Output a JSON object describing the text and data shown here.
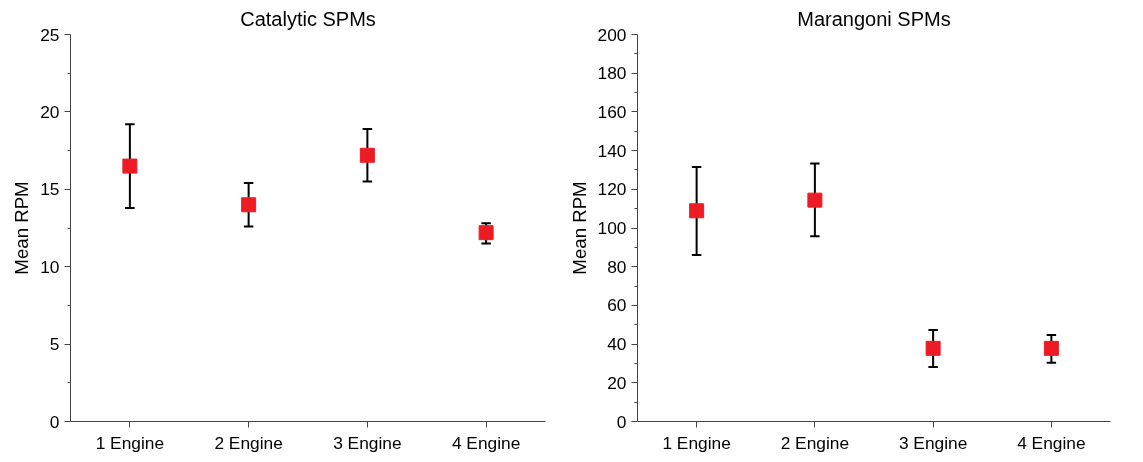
{
  "chart_data": [
    {
      "type": "scatter",
      "title": "Catalytic SPMs",
      "ylabel": "Mean RPM",
      "categories": [
        "1 Engine",
        "2 Engine",
        "3 Engine",
        "4 Engine"
      ],
      "series": [
        {
          "color": "#ed1c24",
          "values": [
            16.5,
            14.0,
            17.2,
            12.2
          ],
          "errors": [
            [
              13.8,
              19.2
            ],
            [
              12.6,
              15.4
            ],
            [
              15.5,
              18.9
            ],
            [
              11.5,
              12.8
            ]
          ]
        }
      ],
      "ylim": [
        0,
        25
      ],
      "yticks": [
        0,
        {
          "value": 2.5,
          "label": null
        },
        5,
        {
          "value": 7.5,
          "label": null
        },
        10,
        {
          "value": 12.5,
          "label": null
        },
        15,
        {
          "value": 17.5,
          "label": null
        },
        20,
        {
          "value": 22.5,
          "label": null
        },
        25
      ],
      "marker": "square",
      "grid": false
    },
    {
      "type": "scatter",
      "title": "Marangoni SPMs",
      "ylabel": "Mean RPM",
      "categories": [
        "1 Engine",
        "2 Engine",
        "3 Engine",
        "4 Engine"
      ],
      "series": [
        {
          "color": "#ed1c24",
          "values": [
            108.9,
            114.4,
            37.8,
            37.8
          ],
          "errors": [
            [
              86.1,
              131.5
            ],
            [
              95.7,
              133.3
            ],
            [
              28.2,
              47.3
            ],
            [
              30.4,
              44.7
            ]
          ]
        }
      ],
      "ylim": [
        0,
        200
      ],
      "yticks": [
        0,
        {
          "value": 10,
          "label": null
        },
        20,
        {
          "value": 30,
          "label": null
        },
        40,
        {
          "value": 50,
          "label": null
        },
        60,
        {
          "value": 70,
          "label": null
        },
        80,
        {
          "value": 90,
          "label": null
        },
        100,
        {
          "value": 110,
          "label": null
        },
        120,
        {
          "value": 130,
          "label": null
        },
        140,
        {
          "value": 150,
          "label": null
        },
        160,
        {
          "value": 170,
          "label": null
        },
        180,
        {
          "value": 190,
          "label": null
        },
        200
      ],
      "marker": "square",
      "grid": false
    }
  ]
}
